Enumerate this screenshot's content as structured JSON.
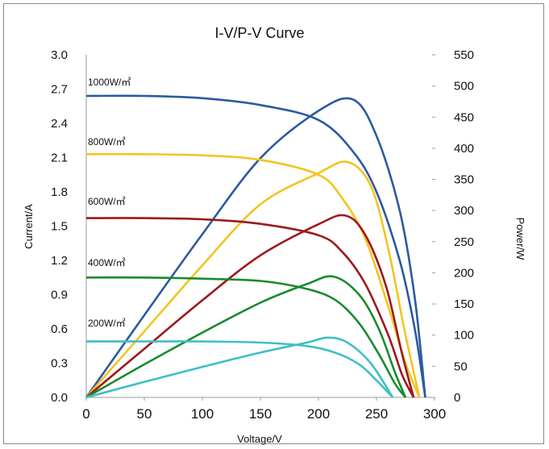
{
  "chart_data": {
    "type": "line",
    "title": "I-V/P-V Curve",
    "xlabel": "Voltage/V",
    "ylabel": "Current/A",
    "y2label": "Power/W",
    "xlim": [
      0,
      300
    ],
    "ylim": [
      0,
      3.0
    ],
    "y2lim": [
      0,
      550
    ],
    "x_ticks": [
      "0",
      "50",
      "100",
      "150",
      "200",
      "250",
      "300"
    ],
    "y_ticks": [
      "0.0",
      "0.3",
      "0.6",
      "0.9",
      "1.2",
      "1.5",
      "1.8",
      "2.1",
      "2.4",
      "2.7",
      "3.0"
    ],
    "y2_ticks": [
      "0",
      "50",
      "100",
      "150",
      "200",
      "250",
      "300",
      "350",
      "400",
      "450",
      "500",
      "550"
    ],
    "grid": false,
    "series": [
      {
        "name": "1000W/㎡",
        "color": "#2b5aa0",
        "iv": [
          [
            0,
            2.64
          ],
          [
            50,
            2.64
          ],
          [
            100,
            2.62
          ],
          [
            150,
            2.56
          ],
          [
            200,
            2.43
          ],
          [
            230,
            2.15
          ],
          [
            250,
            1.8
          ],
          [
            270,
            1.2
          ],
          [
            283,
            0.6
          ],
          [
            292,
            0
          ]
        ],
        "pv": [
          [
            0,
            0
          ],
          [
            50,
            132
          ],
          [
            100,
            262
          ],
          [
            150,
            384
          ],
          [
            200,
            460
          ],
          [
            230,
            478
          ],
          [
            250,
            420
          ],
          [
            270,
            300
          ],
          [
            283,
            160
          ],
          [
            292,
            0
          ]
        ]
      },
      {
        "name": "800W/㎡",
        "color": "#f2c521",
        "iv": [
          [
            0,
            2.13
          ],
          [
            50,
            2.13
          ],
          [
            100,
            2.12
          ],
          [
            150,
            2.08
          ],
          [
            200,
            1.95
          ],
          [
            220,
            1.75
          ],
          [
            240,
            1.4
          ],
          [
            260,
            0.8
          ],
          [
            275,
            0.3
          ],
          [
            287,
            0
          ]
        ],
        "pv": [
          [
            0,
            0
          ],
          [
            50,
            106
          ],
          [
            100,
            212
          ],
          [
            150,
            310
          ],
          [
            200,
            360
          ],
          [
            225,
            378
          ],
          [
            245,
            340
          ],
          [
            260,
            240
          ],
          [
            275,
            100
          ],
          [
            287,
            0
          ]
        ]
      },
      {
        "name": "600W/㎡",
        "color": "#9c1a1a",
        "iv": [
          [
            0,
            1.57
          ],
          [
            50,
            1.57
          ],
          [
            100,
            1.56
          ],
          [
            150,
            1.52
          ],
          [
            200,
            1.42
          ],
          [
            220,
            1.28
          ],
          [
            240,
            1.0
          ],
          [
            260,
            0.55
          ],
          [
            272,
            0.2
          ],
          [
            282,
            0
          ]
        ],
        "pv": [
          [
            0,
            0
          ],
          [
            50,
            78
          ],
          [
            100,
            156
          ],
          [
            150,
            228
          ],
          [
            200,
            278
          ],
          [
            223,
            292
          ],
          [
            240,
            262
          ],
          [
            258,
            180
          ],
          [
            272,
            70
          ],
          [
            282,
            0
          ]
        ]
      },
      {
        "name": "400W/㎡",
        "color": "#1a8a2e",
        "iv": [
          [
            0,
            1.05
          ],
          [
            50,
            1.05
          ],
          [
            100,
            1.04
          ],
          [
            150,
            1.02
          ],
          [
            190,
            0.95
          ],
          [
            215,
            0.85
          ],
          [
            235,
            0.65
          ],
          [
            252,
            0.38
          ],
          [
            266,
            0.12
          ],
          [
            275,
            0
          ]
        ],
        "pv": [
          [
            0,
            0
          ],
          [
            50,
            53
          ],
          [
            100,
            104
          ],
          [
            150,
            152
          ],
          [
            190,
            182
          ],
          [
            213,
            194
          ],
          [
            235,
            165
          ],
          [
            252,
            110
          ],
          [
            266,
            40
          ],
          [
            275,
            0
          ]
        ]
      },
      {
        "name": "200W/㎡",
        "color": "#3fbfc4",
        "iv": [
          [
            0,
            0.49
          ],
          [
            50,
            0.49
          ],
          [
            100,
            0.49
          ],
          [
            150,
            0.48
          ],
          [
            190,
            0.45
          ],
          [
            215,
            0.39
          ],
          [
            235,
            0.29
          ],
          [
            250,
            0.15
          ],
          [
            264,
            0
          ]
        ],
        "pv": [
          [
            0,
            0
          ],
          [
            50,
            25
          ],
          [
            100,
            49
          ],
          [
            150,
            72
          ],
          [
            190,
            88
          ],
          [
            208,
            96
          ],
          [
            225,
            88
          ],
          [
            245,
            55
          ],
          [
            264,
            0
          ]
        ]
      }
    ]
  }
}
